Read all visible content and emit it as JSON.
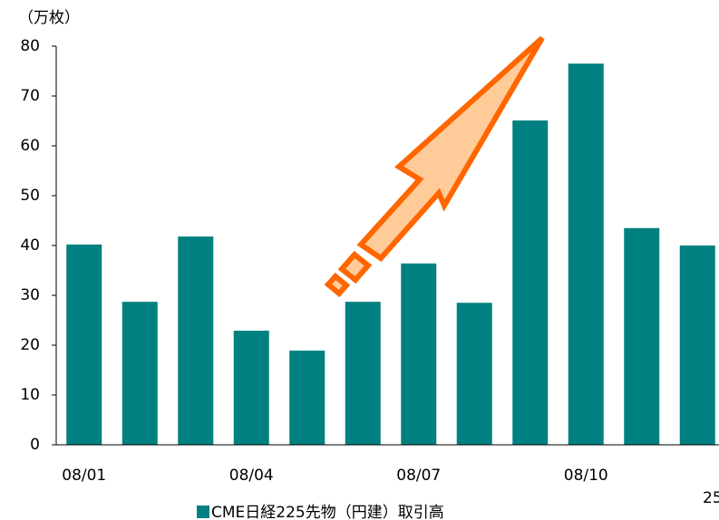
{
  "chart_data": {
    "type": "bar",
    "y_axis_label": "（万枚）",
    "categories": [
      "08/01",
      null,
      null,
      "08/04",
      null,
      null,
      "08/07",
      null,
      null,
      "08/10",
      null,
      null
    ],
    "series": [
      {
        "name": "CME日経225先物（円建）取引高",
        "color": "#008080",
        "values": [
          40.2,
          28.7,
          41.8,
          22.9,
          18.9,
          28.7,
          36.4,
          28.5,
          65.1,
          76.5,
          43.5,
          40.0
        ]
      }
    ],
    "ylim": [
      0,
      80
    ],
    "yticks": [
      0,
      10,
      20,
      30,
      40,
      50,
      60,
      70,
      80
    ],
    "page_number": "25"
  }
}
